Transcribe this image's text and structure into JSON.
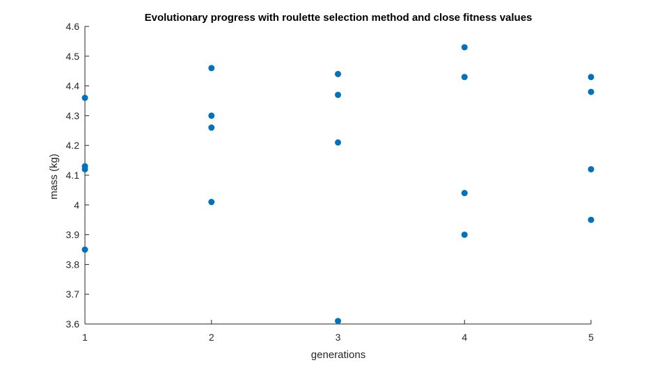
{
  "chart_data": {
    "type": "scatter",
    "title": "Evolutionary progress with roulette selection method and close fitness values",
    "xlabel": "generations",
    "ylabel": "mass (kg)",
    "xlim": [
      1,
      5
    ],
    "ylim": [
      3.6,
      4.6
    ],
    "xticks": [
      "1",
      "2",
      "3",
      "4",
      "5"
    ],
    "yticks": [
      "3.6",
      "3.7",
      "3.8",
      "3.9",
      "4",
      "4.1",
      "4.2",
      "4.3",
      "4.4",
      "4.5",
      "4.6"
    ],
    "grid": false,
    "marker_color": "#0072BD",
    "points": [
      {
        "x": 1,
        "y": 4.36
      },
      {
        "x": 1,
        "y": 4.13
      },
      {
        "x": 1,
        "y": 4.12
      },
      {
        "x": 1,
        "y": 3.85
      },
      {
        "x": 2,
        "y": 4.46
      },
      {
        "x": 2,
        "y": 4.3
      },
      {
        "x": 2,
        "y": 4.26
      },
      {
        "x": 2,
        "y": 4.01
      },
      {
        "x": 3,
        "y": 4.44
      },
      {
        "x": 3,
        "y": 4.37
      },
      {
        "x": 3,
        "y": 4.21
      },
      {
        "x": 3,
        "y": 3.61
      },
      {
        "x": 4,
        "y": 4.53
      },
      {
        "x": 4,
        "y": 4.43
      },
      {
        "x": 4,
        "y": 4.04
      },
      {
        "x": 4,
        "y": 3.9
      },
      {
        "x": 5,
        "y": 4.43
      },
      {
        "x": 5,
        "y": 4.38
      },
      {
        "x": 5,
        "y": 4.12
      },
      {
        "x": 5,
        "y": 3.95
      }
    ]
  }
}
